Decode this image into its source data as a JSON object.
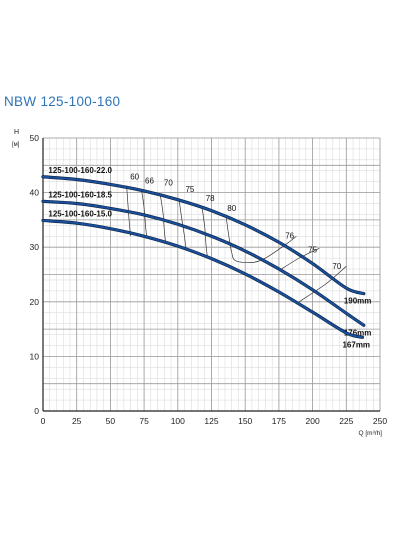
{
  "title": "NBW 125-100-160",
  "colors": {
    "title": "#2f73b8",
    "curve": "#1a4f9c",
    "curve_outline": "#0b2240",
    "grid_major": "#9a9a9a",
    "grid_minor": "#d6d6d6",
    "efficiency": "#333333"
  },
  "chart_data": {
    "type": "line",
    "xlabel": "Q [m³/h]",
    "ylabel": "H [м]",
    "xlim": [
      0,
      250
    ],
    "ylim": [
      0,
      50
    ],
    "x_ticks": [
      0,
      25,
      50,
      75,
      100,
      125,
      150,
      175,
      200,
      225,
      250
    ],
    "y_ticks": [
      0,
      10,
      20,
      30,
      40,
      50
    ],
    "grid": true,
    "series": [
      {
        "name": "125-100-160-22.0",
        "end_label": "190mm",
        "x": [
          0,
          25,
          50,
          75,
          100,
          125,
          150,
          175,
          200,
          225,
          238
        ],
        "y": [
          42.9,
          42.4,
          41.5,
          40.3,
          38.7,
          36.7,
          34.1,
          30.9,
          27.0,
          22.5,
          21.5
        ]
      },
      {
        "name": "125-100-160-18.5",
        "end_label": "176mm",
        "x": [
          0,
          25,
          50,
          75,
          100,
          125,
          150,
          175,
          200,
          225,
          238
        ],
        "y": [
          38.4,
          38.0,
          37.1,
          35.9,
          34.2,
          32.0,
          29.3,
          26.0,
          22.2,
          17.9,
          15.7
        ]
      },
      {
        "name": "125-100-160-15.0",
        "end_label": "167mm",
        "x": [
          0,
          25,
          50,
          75,
          100,
          125,
          150,
          175,
          200,
          225,
          237
        ],
        "y": [
          34.9,
          34.4,
          33.4,
          32.0,
          30.2,
          27.9,
          25.1,
          21.8,
          18.1,
          14.3,
          13.5
        ]
      }
    ],
    "efficiency_labels": [
      {
        "label": "60",
        "x": 68,
        "y": 42.4
      },
      {
        "label": "66",
        "x": 79,
        "y": 41.7
      },
      {
        "label": "70",
        "x": 93,
        "y": 41.3
      },
      {
        "label": "75",
        "x": 109,
        "y": 40.1
      },
      {
        "label": "78",
        "x": 124,
        "y": 38.5
      },
      {
        "label": "80",
        "x": 140,
        "y": 36.6
      },
      {
        "label": "76",
        "x": 183,
        "y": 31.6
      },
      {
        "label": "75",
        "x": 200,
        "y": 29.0
      },
      {
        "label": "70",
        "x": 218,
        "y": 26.0
      }
    ],
    "efficiency_curves": [
      {
        "x": [
          62,
          63,
          64,
          65
        ],
        "y": [
          41.3,
          37.9,
          34.5,
          32.0
        ]
      },
      {
        "x": [
          73,
          75,
          76,
          77
        ],
        "y": [
          40.6,
          37.2,
          34.1,
          31.6
        ]
      },
      {
        "x": [
          87,
          89,
          90,
          91
        ],
        "y": [
          39.6,
          36.3,
          33.1,
          30.7
        ]
      },
      {
        "x": [
          101,
          103,
          105,
          106
        ],
        "y": [
          38.6,
          35.1,
          31.9,
          29.6
        ]
      },
      {
        "x": [
          118,
          120,
          121,
          122
        ],
        "y": [
          37.3,
          33.6,
          30.2,
          28.2
        ]
      },
      {
        "x": [
          136,
          138,
          140,
          143,
          155,
          165,
          180,
          188
        ],
        "y": [
          35.3,
          31.8,
          29.0,
          27.5,
          27.2,
          28.0,
          30.5,
          32.0
        ]
      },
      {
        "x": [
          175,
          190,
          205
        ],
        "y": [
          25.7,
          28.0,
          29.8
        ]
      },
      {
        "x": [
          190,
          210,
          225
        ],
        "y": [
          20.0,
          23.3,
          26.5
        ]
      }
    ]
  }
}
